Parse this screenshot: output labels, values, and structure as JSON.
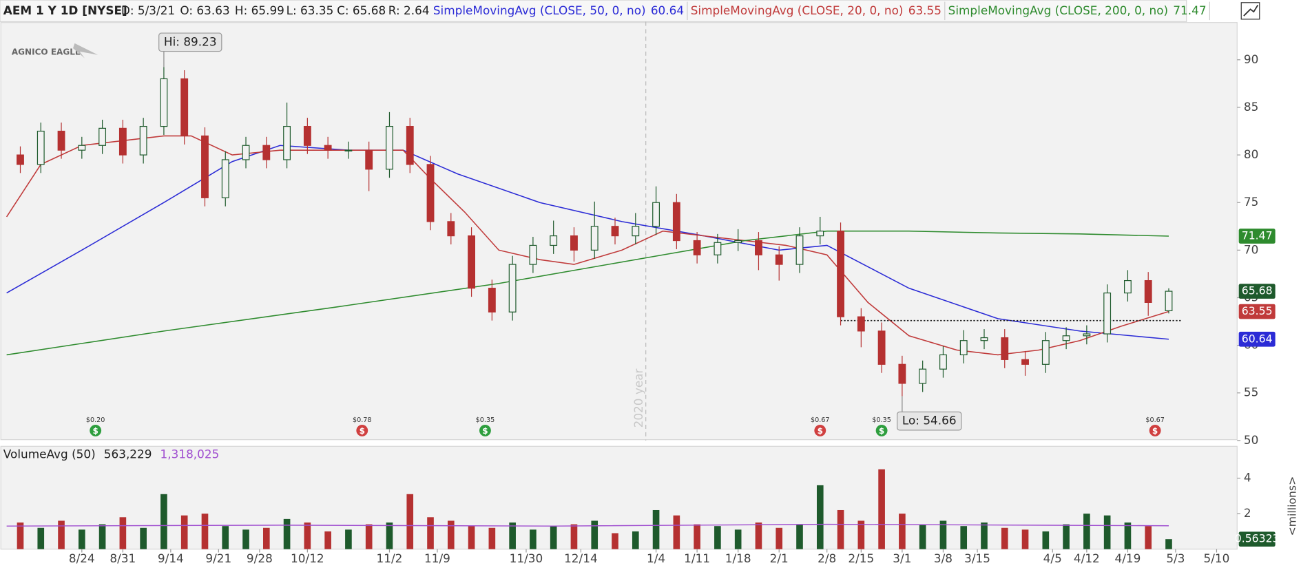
{
  "chart_data": {
    "type": "candlestick",
    "title": "AEM 1 Y 1D [NYSE]",
    "quote": {
      "date": "D: 5/3/21",
      "open": "O: 63.63",
      "high": "H: 65.99",
      "low": "L: 63.35",
      "close": "C: 65.68",
      "range": "R: 2.64"
    },
    "logo": "AGNICO EAGLE",
    "up_color": "#1e5a2c",
    "down_color": "#b53131",
    "x": [
      2,
      5,
      8,
      11,
      14,
      17,
      20,
      23,
      26,
      29,
      32,
      35,
      38,
      41,
      44,
      47,
      50,
      53,
      56,
      59,
      62,
      65,
      68,
      71,
      74,
      77,
      80,
      83,
      86,
      89,
      92,
      95,
      98,
      101,
      104,
      107,
      110,
      113,
      116,
      119,
      122,
      125,
      128,
      131,
      134,
      137,
      140,
      143,
      146,
      149,
      152,
      155,
      158,
      161,
      164,
      167,
      170
    ],
    "open": [
      80,
      79,
      82.5,
      80.5,
      81,
      82.8,
      80,
      83,
      88,
      82,
      75.5,
      79.5,
      81,
      79.5,
      83,
      81,
      80.5,
      80.5,
      78.5,
      83,
      79,
      73,
      71.5,
      66,
      63.5,
      68.5,
      70.5,
      71.5,
      70,
      72.5,
      71.5,
      72.5,
      75,
      71,
      69.5,
      70.8,
      71,
      69.5,
      68.5,
      71.5,
      72,
      63,
      61.5,
      58,
      56,
      57.5,
      59,
      60.5,
      60.8,
      58.5,
      58,
      60.5,
      61,
      61.2,
      65.5,
      66.8,
      63.63
    ],
    "high": [
      80.9,
      83.4,
      83.4,
      81.9,
      83.7,
      83.7,
      83.9,
      89.23,
      88.9,
      82.9,
      80.4,
      81.9,
      81.9,
      85.5,
      83.9,
      81.9,
      81.4,
      81.4,
      84.5,
      83.9,
      79.9,
      73.9,
      72.4,
      66.9,
      69.4,
      71.4,
      73.1,
      72.4,
      75.1,
      73.4,
      73.9,
      76.7,
      75.9,
      71.9,
      71.7,
      72.2,
      71.9,
      70.4,
      72.4,
      73.5,
      72.9,
      63.9,
      62.4,
      58.9,
      58.4,
      59.9,
      61.6,
      61.7,
      61.7,
      59.4,
      61.4,
      61.9,
      62.1,
      66.4,
      67.9,
      67.7,
      65.99
    ],
    "low": [
      78.1,
      78.1,
      79.6,
      79.6,
      80.1,
      79.1,
      79.1,
      82.1,
      81.1,
      74.6,
      74.6,
      78.6,
      78.6,
      78.6,
      80.1,
      79.6,
      79.6,
      76.2,
      77.6,
      78.1,
      72.1,
      70.6,
      65.1,
      62.6,
      62.6,
      67.6,
      69.6,
      68.8,
      69.1,
      70.6,
      70.6,
      71.6,
      70.1,
      68.6,
      68.6,
      69.9,
      67.9,
      66.8,
      67.6,
      70.6,
      62.1,
      59.8,
      57.1,
      54.66,
      55.1,
      56.6,
      58.1,
      59.6,
      57.6,
      56.8,
      57.1,
      59.6,
      60.1,
      60.3,
      64.6,
      63.1,
      63.35
    ],
    "close": [
      79,
      82.5,
      80.5,
      81,
      82.8,
      80,
      83,
      88,
      82,
      75.5,
      79.5,
      81,
      79.5,
      83,
      81,
      80.5,
      80.5,
      78.5,
      83,
      79,
      73,
      71.5,
      66,
      63.5,
      68.5,
      70.5,
      71.5,
      70,
      72.5,
      71.5,
      72.5,
      75,
      71,
      69.5,
      70.8,
      71,
      69.5,
      68.5,
      71.5,
      72,
      63,
      61.5,
      58,
      56,
      57.5,
      59,
      60.5,
      60.8,
      58.5,
      58,
      60.5,
      61,
      61.2,
      65.5,
      66.8,
      64.5,
      65.68
    ],
    "moving_averages": [
      {
        "name": "SimpleMovingAvg (CLOSE, 50, 0, no)",
        "color": "#2b2bd6",
        "x": [
          0,
          11,
          23,
          33,
          40,
          50,
          58,
          66,
          78,
          90,
          102,
          113,
          120,
          132,
          145,
          157,
          170
        ],
        "values": [
          65.5,
          70,
          75,
          79.3,
          81,
          80.5,
          80.5,
          78,
          75,
          73,
          71.5,
          70,
          70.5,
          66,
          62.8,
          61.5,
          60.64
        ]
      },
      {
        "name": "SimpleMovingAvg (CLOSE, 20, 0, no)",
        "color": "#c03a3a",
        "x": [
          0,
          5,
          11,
          23,
          27,
          33,
          40,
          50,
          58,
          62,
          67,
          72,
          78,
          83,
          90,
          96,
          102,
          108,
          114,
          120,
          126,
          132,
          139,
          145,
          151,
          157,
          163,
          170
        ],
        "values": [
          73.5,
          79,
          81,
          82,
          82,
          80,
          80.5,
          80.5,
          80.5,
          77.5,
          74,
          70,
          69,
          68.5,
          70,
          72,
          71.5,
          71,
          70.5,
          69.5,
          64.5,
          61,
          59.5,
          59,
          59.5,
          60.5,
          62,
          63.55
        ]
      },
      {
        "name": "SimpleMovingAvg (CLOSE, 200, 0, no)",
        "color": "#2e8b2e",
        "x": [
          0,
          23,
          48,
          72,
          96,
          108,
          120,
          132,
          145,
          157,
          170
        ],
        "values": [
          59,
          61.5,
          64,
          66.5,
          69.5,
          71,
          72,
          72,
          71.8,
          71.7,
          71.47
        ]
      }
    ],
    "annotations": [
      {
        "label": "Hi: 89.23",
        "candle": 7
      },
      {
        "label": "Lo: 54.66",
        "candle": 43
      }
    ],
    "dividends": [
      {
        "x": 13,
        "label": "$0.20",
        "color": "#2e9e3e"
      },
      {
        "x": 52,
        "label": "$0.78",
        "color": "#d04040"
      },
      {
        "x": 70,
        "label": "$0.35",
        "color": "#2e9e3e"
      },
      {
        "x": 119,
        "label": "$0.67",
        "color": "#d04040"
      },
      {
        "x": 128,
        "label": "$0.35",
        "color": "#2e9e3e"
      },
      {
        "x": 168,
        "label": "$0.67",
        "color": "#d04040"
      }
    ],
    "year_marker": {
      "x": 93.5,
      "label": "2020 year"
    },
    "support": {
      "value": 62.6,
      "x": [
        122,
        172
      ]
    },
    "xlim": [
      0,
      180
    ],
    "xticks": [
      {
        "value": 11,
        "label": "8/24"
      },
      {
        "value": 17,
        "label": "8/31"
      },
      {
        "value": 24,
        "label": "9/14"
      },
      {
        "value": 31,
        "label": "9/21"
      },
      {
        "value": 37,
        "label": "9/28"
      },
      {
        "value": 44,
        "label": "10/12"
      },
      {
        "value": 56,
        "label": "11/2"
      },
      {
        "value": 63,
        "label": "11/9"
      },
      {
        "value": 76,
        "label": "11/30"
      },
      {
        "value": 84,
        "label": "12/14"
      },
      {
        "value": 95,
        "label": "1/4"
      },
      {
        "value": 101,
        "label": "1/11"
      },
      {
        "value": 107,
        "label": "1/18"
      },
      {
        "value": 113,
        "label": "2/1"
      },
      {
        "value": 120,
        "label": "2/8"
      },
      {
        "value": 125,
        "label": "2/15"
      },
      {
        "value": 131,
        "label": "3/1"
      },
      {
        "value": 137,
        "label": "3/8"
      },
      {
        "value": 142,
        "label": "3/15"
      },
      {
        "value": 153,
        "label": "4/5"
      },
      {
        "value": 158,
        "label": "4/12"
      },
      {
        "value": 164,
        "label": "4/19"
      },
      {
        "value": 171,
        "label": "5/3"
      },
      {
        "value": 177,
        "label": "5/10"
      }
    ],
    "ylim": [
      50,
      94
    ],
    "yticks": [
      50,
      55,
      60,
      65,
      70,
      75,
      80,
      85,
      90
    ],
    "volume": {
      "title": "VolumeAvg (50)",
      "current_label": "563,229",
      "average_label": "1,318,025",
      "unit_label": "<millions>",
      "values": [
        1.5,
        1.2,
        1.6,
        1.1,
        1.4,
        1.8,
        1.2,
        3.1,
        1.9,
        2.0,
        1.3,
        1.1,
        1.2,
        1.7,
        1.5,
        1.0,
        1.1,
        1.4,
        1.5,
        3.1,
        1.8,
        1.6,
        1.3,
        1.2,
        1.5,
        1.1,
        1.3,
        1.4,
        1.6,
        0.9,
        1.0,
        2.2,
        1.9,
        1.4,
        1.3,
        1.1,
        1.5,
        1.2,
        1.4,
        3.6,
        2.2,
        1.6,
        4.5,
        2.0,
        1.4,
        1.6,
        1.3,
        1.5,
        1.2,
        1.1,
        1.0,
        1.4,
        2.0,
        1.9,
        1.5,
        1.3,
        0.56323
      ],
      "average": {
        "color": "#a04fd0",
        "x": [
          0,
          40,
          80,
          120,
          150,
          170
        ],
        "values": [
          1.3,
          1.35,
          1.3,
          1.4,
          1.35,
          1.318025
        ]
      },
      "ylim": [
        0,
        5
      ],
      "yticks": [
        2,
        4
      ]
    }
  }
}
